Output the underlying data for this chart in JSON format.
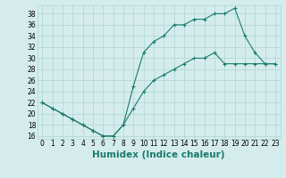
{
  "xlabel": "Humidex (Indice chaleur)",
  "line1_x": [
    0,
    1,
    2,
    3,
    4,
    5,
    6,
    7,
    8,
    9,
    10,
    11,
    12,
    13,
    14,
    15,
    16,
    17,
    18,
    19,
    20,
    21,
    22,
    23
  ],
  "line1_y": [
    22,
    21,
    20,
    19,
    18,
    17,
    16,
    16,
    18,
    25,
    31,
    33,
    34,
    36,
    36,
    37,
    37,
    38,
    38,
    39,
    34,
    31,
    29,
    29
  ],
  "line2_x": [
    0,
    1,
    2,
    3,
    4,
    5,
    6,
    7,
    8,
    9,
    10,
    11,
    12,
    13,
    14,
    15,
    16,
    17,
    18,
    19,
    20,
    21,
    22,
    23
  ],
  "line2_y": [
    22,
    21,
    20,
    19,
    18,
    17,
    16,
    16,
    18,
    21,
    24,
    26,
    27,
    28,
    29,
    30,
    30,
    31,
    29,
    29,
    29,
    29,
    29,
    29
  ],
  "line_color": "#1a7a6e",
  "marker": "+",
  "bg_color": "#d4edec",
  "grid_color": "#aed4d0",
  "xlim": [
    -0.5,
    23.5
  ],
  "ylim": [
    15.5,
    39.5
  ],
  "yticks": [
    16,
    18,
    20,
    22,
    24,
    26,
    28,
    30,
    32,
    34,
    36,
    38
  ],
  "xticks": [
    0,
    1,
    2,
    3,
    4,
    5,
    6,
    7,
    8,
    9,
    10,
    11,
    12,
    13,
    14,
    15,
    16,
    17,
    18,
    19,
    20,
    21,
    22,
    23
  ],
  "tick_label_fontsize": 5.5,
  "xlabel_fontsize": 7.5
}
